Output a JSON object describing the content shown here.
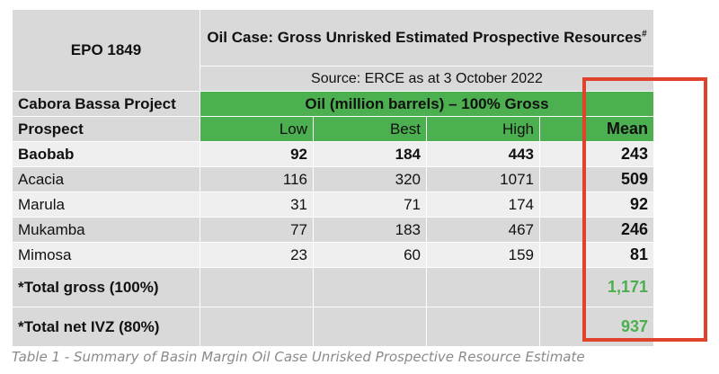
{
  "table": {
    "block_label": "EPO 1849",
    "main_title": "Oil Case: Gross Unrisked Estimated Prospective Resources",
    "main_title_sup": "#",
    "source": "Source: ERCE as at 3 October 2022",
    "project_label": "Cabora Bassa Project",
    "unit_label": "Oil (million barrels) – 100% Gross",
    "col_prospect": "Prospect",
    "col_low": "Low",
    "col_best": "Best",
    "col_high": "High",
    "col_mean": "Mean",
    "rows": [
      {
        "name": "Baobab",
        "low": "92",
        "best": "184",
        "high": "443",
        "mean": "243"
      },
      {
        "name": "Acacia",
        "low": "116",
        "best": "320",
        "high": "1071",
        "mean": "509"
      },
      {
        "name": "Marula",
        "low": "31",
        "best": "71",
        "high": "174",
        "mean": "92"
      },
      {
        "name": "Mukamba",
        "low": "77",
        "best": "183",
        "high": "467",
        "mean": "246"
      },
      {
        "name": "Mimosa",
        "low": "23",
        "best": "60",
        "high": "159",
        "mean": "81"
      }
    ],
    "total_gross_label": "*Total gross (100%)",
    "total_gross_value": "1,171",
    "total_net_label": "*Total net IVZ (80%)",
    "total_net_value": "937"
  },
  "caption": "Table 1 - Summary of Basin Margin Oil Case Unrisked Prospective Resource Estimate",
  "colors": {
    "green": "#4caf50",
    "highlight": "#e0432b"
  }
}
